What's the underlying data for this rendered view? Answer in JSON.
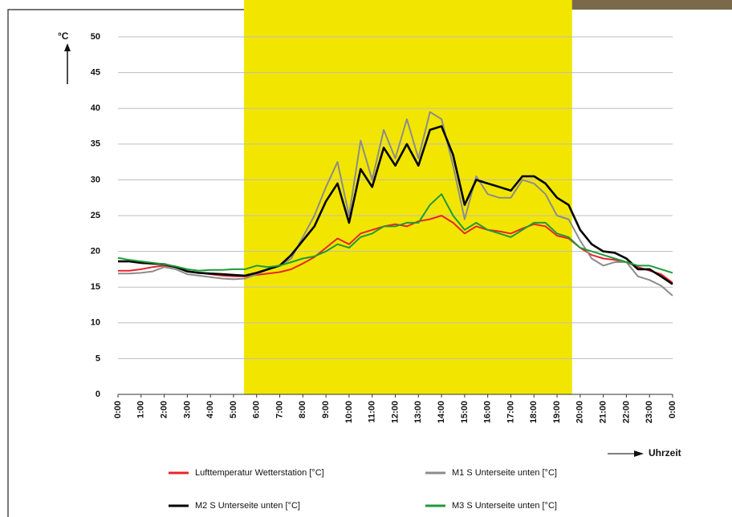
{
  "chart_data": {
    "type": "line",
    "y_label": "°C",
    "x_label": "Uhrzeit",
    "xlim": [
      0,
      24
    ],
    "ylim": [
      0,
      50
    ],
    "yticks": [
      0,
      5,
      10,
      15,
      20,
      25,
      30,
      35,
      40,
      45,
      50
    ],
    "xticks": [
      {
        "value": 0,
        "label": "0:00"
      },
      {
        "value": 1,
        "label": "1:00"
      },
      {
        "value": 2,
        "label": "2:00"
      },
      {
        "value": 3,
        "label": "3:00"
      },
      {
        "value": 4,
        "label": "4:00"
      },
      {
        "value": 5,
        "label": "5:00"
      },
      {
        "value": 6,
        "label": "6:00"
      },
      {
        "value": 7,
        "label": "7:00"
      },
      {
        "value": 8,
        "label": "8:00"
      },
      {
        "value": 9,
        "label": "9:00"
      },
      {
        "value": 10,
        "label": "10:00"
      },
      {
        "value": 11,
        "label": "11:00"
      },
      {
        "value": 12,
        "label": "12:00"
      },
      {
        "value": 13,
        "label": "13:00"
      },
      {
        "value": 14,
        "label": "14:00"
      },
      {
        "value": 15,
        "label": "15:00"
      },
      {
        "value": 16,
        "label": "16:00"
      },
      {
        "value": 17,
        "label": "17:00"
      },
      {
        "value": 18,
        "label": "18:00"
      },
      {
        "value": 19,
        "label": "19:00"
      },
      {
        "value": 20,
        "label": "20:00"
      },
      {
        "value": 21,
        "label": "21:00"
      },
      {
        "value": 22,
        "label": "22:00"
      },
      {
        "value": 23,
        "label": "23:00"
      },
      {
        "value": 24,
        "label": "0:00"
      }
    ],
    "grid": true,
    "shaded_x": [
      5.45,
      19.65
    ],
    "shade_color": "#f2e600",
    "x": [
      0,
      0.5,
      1,
      1.5,
      2,
      2.5,
      3,
      3.5,
      4,
      4.5,
      5,
      5.5,
      6,
      6.5,
      7,
      7.5,
      8,
      8.5,
      9,
      9.5,
      10,
      10.5,
      11,
      11.5,
      12,
      12.5,
      13,
      13.5,
      14,
      14.5,
      15,
      15.5,
      16,
      16.5,
      17,
      17.5,
      18,
      18.5,
      19,
      19.5,
      20,
      20.5,
      21,
      21.5,
      22,
      22.5,
      23,
      23.5,
      24
    ],
    "series": [
      {
        "name": "Lufttemperatur Wetterstation [°C]",
        "color": "#e8242a",
        "values": [
          17.3,
          17.3,
          17.5,
          17.8,
          18.0,
          17.8,
          17.2,
          17.0,
          16.8,
          16.6,
          16.5,
          16.5,
          16.7,
          16.9,
          17.1,
          17.5,
          18.3,
          19.2,
          20.5,
          21.8,
          21.0,
          22.5,
          23.0,
          23.5,
          23.8,
          23.5,
          24.2,
          24.5,
          25.0,
          24.0,
          22.5,
          23.5,
          23.0,
          22.8,
          22.5,
          23.2,
          23.8,
          23.5,
          22.2,
          21.8,
          20.5,
          19.5,
          19.0,
          18.8,
          18.5,
          17.8,
          17.3,
          16.8,
          15.6
        ]
      },
      {
        "name": "M1 S Unterseite unten [°C]",
        "color": "#8c8c8c",
        "values": [
          16.9,
          16.9,
          17.0,
          17.2,
          17.8,
          17.5,
          16.8,
          16.6,
          16.4,
          16.2,
          16.1,
          16.2,
          16.8,
          17.5,
          18.0,
          19.0,
          22.0,
          25.0,
          29.0,
          32.5,
          25.0,
          35.5,
          30.0,
          37.0,
          33.0,
          38.5,
          33.0,
          39.5,
          38.5,
          32.0,
          24.5,
          30.5,
          28.0,
          27.5,
          27.5,
          30.0,
          29.5,
          28.0,
          25.0,
          24.5,
          21.5,
          19.0,
          18.0,
          18.5,
          18.5,
          16.5,
          16.0,
          15.2,
          13.8
        ]
      },
      {
        "name": "M2 S Unterseite unten [°C]",
        "color": "#000000",
        "values": [
          18.6,
          18.6,
          18.4,
          18.3,
          18.2,
          17.8,
          17.2,
          17.0,
          16.9,
          16.8,
          16.7,
          16.6,
          17.0,
          17.5,
          18.0,
          19.5,
          21.5,
          23.5,
          27.0,
          29.5,
          24.0,
          31.5,
          29.0,
          34.5,
          32.0,
          35.0,
          32.0,
          37.0,
          37.5,
          33.5,
          26.5,
          30.0,
          29.5,
          29.0,
          28.5,
          30.5,
          30.5,
          29.5,
          27.5,
          26.5,
          23.0,
          21.0,
          20.0,
          19.8,
          19.0,
          17.5,
          17.5,
          16.5,
          15.4
        ]
      },
      {
        "name": "M3 S Unterseite unten [°C]",
        "color": "#1f9a3a",
        "values": [
          19.1,
          18.8,
          18.6,
          18.4,
          18.2,
          17.9,
          17.5,
          17.3,
          17.4,
          17.4,
          17.5,
          17.5,
          18.0,
          17.8,
          18.0,
          18.5,
          19.0,
          19.3,
          20.0,
          21.0,
          20.5,
          22.0,
          22.5,
          23.5,
          23.5,
          24.0,
          24.0,
          26.5,
          28.0,
          25.0,
          23.0,
          24.0,
          23.0,
          22.5,
          22.0,
          23.0,
          24.0,
          24.0,
          22.5,
          22.0,
          20.5,
          20.0,
          19.5,
          19.0,
          18.5,
          18.0,
          18.0,
          17.5,
          17.0
        ]
      }
    ]
  }
}
